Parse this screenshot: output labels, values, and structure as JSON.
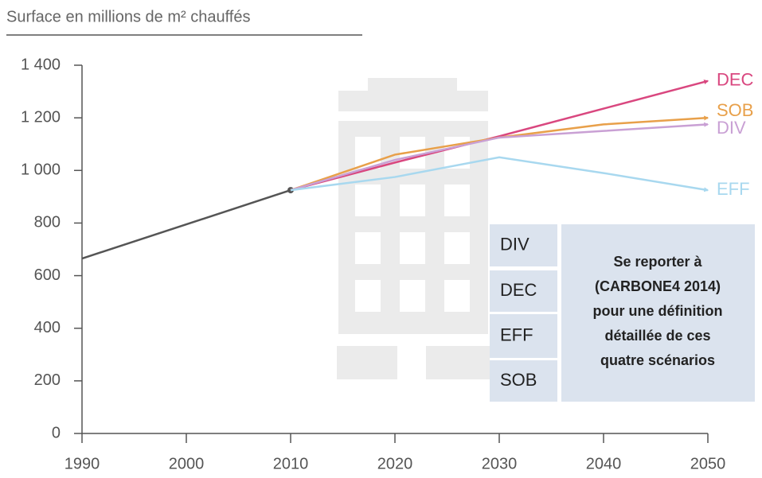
{
  "chart_data": {
    "type": "line",
    "title": "Surface en millions de m² chauffés",
    "xlim": [
      1990,
      2050
    ],
    "xticks": [
      1990,
      2000,
      2010,
      2020,
      2030,
      2040,
      2050
    ],
    "ylim": [
      0,
      1400
    ],
    "yticks": [
      0,
      200,
      400,
      600,
      800,
      {
        "value": 1000,
        "label": "1 000"
      },
      {
        "value": 1200,
        "label": "1 200"
      },
      {
        "value": 1400,
        "label": "1 400"
      }
    ],
    "series": [
      {
        "color": "#555555",
        "x": [
          1990,
          2010
        ],
        "values": [
          665,
          925
        ]
      },
      {
        "name": "DEC",
        "color": "#d9477f",
        "x": [
          2010,
          2020,
          2030,
          2040,
          2050
        ],
        "values": [
          925,
          1030,
          1130,
          1235,
          1340
        ]
      },
      {
        "name": "SOB",
        "color": "#e8a04a",
        "x": [
          2010,
          2020,
          2030,
          2040,
          2050
        ],
        "values": [
          925,
          1060,
          1125,
          1175,
          1200
        ]
      },
      {
        "name": "DIV",
        "color": "#c9a0d4",
        "x": [
          2010,
          2020,
          2030,
          2040,
          2050
        ],
        "values": [
          925,
          1040,
          1125,
          1150,
          1175
        ]
      },
      {
        "name": "EFF",
        "color": "#a8d8ef",
        "x": [
          2010,
          2020,
          2030,
          2040,
          2050
        ],
        "values": [
          925,
          975,
          1050,
          990,
          925
        ]
      }
    ],
    "box_labels": [
      "DIV",
      "DEC",
      "EFF",
      "SOB"
    ],
    "note": [
      "Se reporter à",
      "(CARBONE4 2014)",
      "pour une définition",
      "détaillée de ces",
      "quatre scénarios"
    ]
  }
}
